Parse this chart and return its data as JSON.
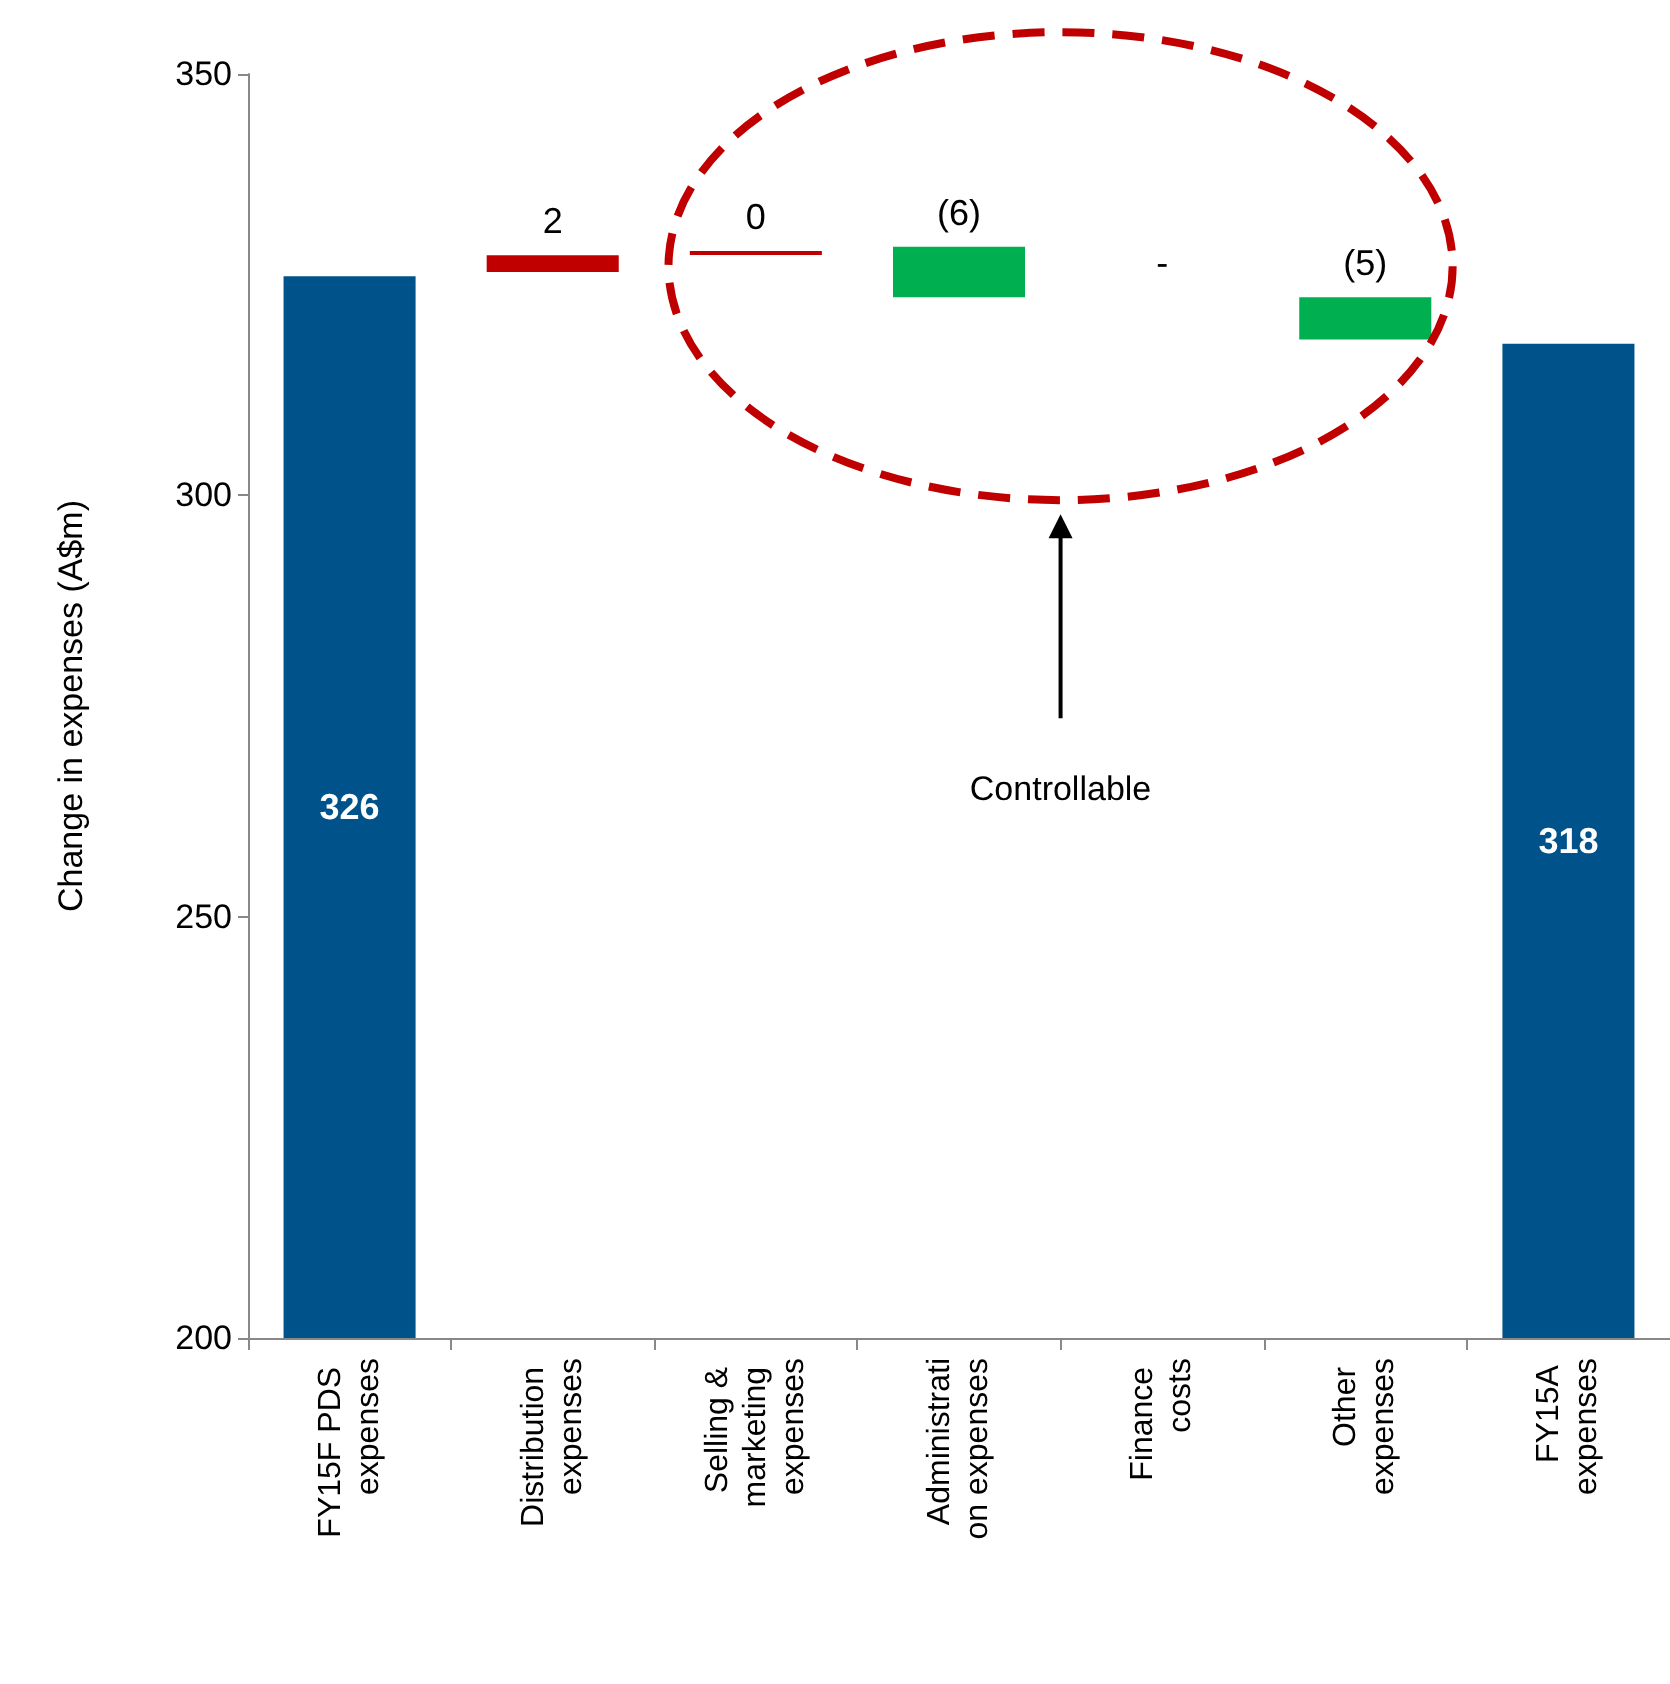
{
  "chart_data": {
    "type": "bar",
    "ylabel": "Change in expenses (A$m)",
    "categories": [
      "FY15F PDS expenses",
      "Distribution expenses",
      "Selling & marketing expenses",
      "Administration expenses",
      "Finance costs",
      "Other expenses",
      "FY15A expenses"
    ],
    "values": [
      326,
      2,
      0,
      -6,
      null,
      -5,
      318
    ],
    "base": [
      null,
      326.5,
      329,
      329.5,
      null,
      323.5,
      null
    ],
    "colors": [
      "#00538a",
      "#c00000",
      "#c00000",
      "#00b050",
      "#000000",
      "#00b050",
      "#00538a"
    ],
    "value_labels": [
      "326",
      "2",
      "0",
      "(6)",
      "-",
      "(5)",
      "318"
    ],
    "ylim": [
      200,
      350
    ],
    "yticks": [
      200,
      250,
      300,
      350
    ],
    "annotations": [
      "Controllable"
    ],
    "grid": false
  }
}
